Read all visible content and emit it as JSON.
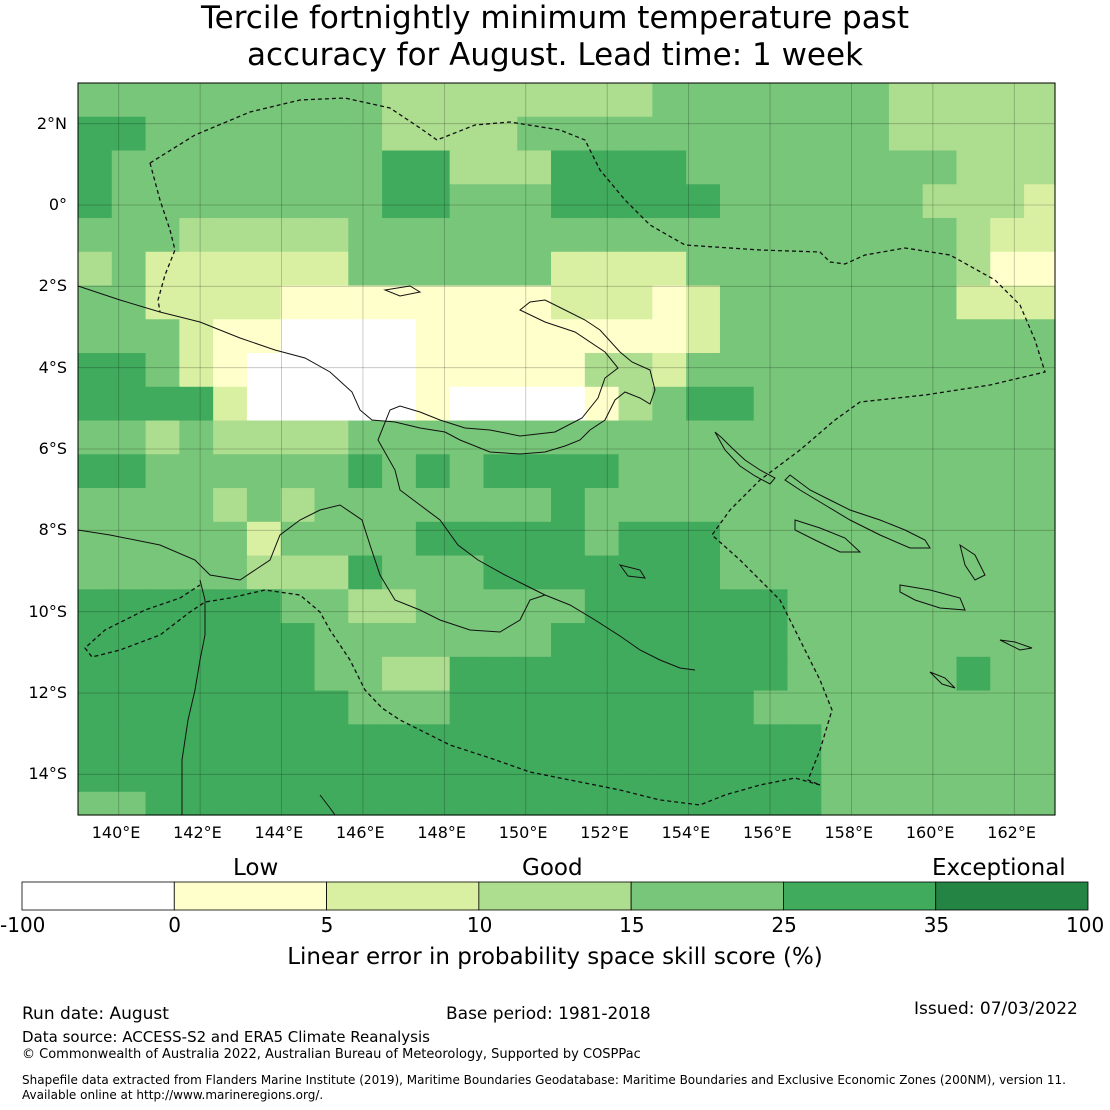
{
  "title_line1": "Tercile fortnightly minimum temperature past",
  "title_line2": "accuracy for August. Lead time: 1 week",
  "map": {
    "lat_range": [
      -15,
      3
    ],
    "lon_range": [
      139,
      163
    ],
    "lat_labels": [
      "2°N",
      "0°",
      "2°S",
      "4°S",
      "6°S",
      "8°S",
      "10°S",
      "12°S",
      "14°S"
    ],
    "lon_labels": [
      "140°E",
      "142°E",
      "144°E",
      "146°E",
      "148°E",
      "150°E",
      "152°E",
      "154°E",
      "156°E",
      "158°E",
      "160°E",
      "162°E"
    ],
    "grid_resolution_deg": 0.83,
    "grid_rows_north_to_south": [
      "44444444433333333444444433333322",
      "55444444433334444444444433333221",
      "54444444455333555544444444333211",
      "54444444455444555554444443332100",
      "44433333444444444444444444322111",
      "34222222444444222244444444311111",
      "44222211111111222124444444222221",
      "44421100001111111124444444444444",
      "55421000001111133244444444444444",
      "55552000001000013455444444444444",
      "44343333444444444444444444444444",
      "55444444545455554444444444444444",
      "44443434444444544444444444444444",
      "44444244445555545554444444444444",
      "44444333544455555554444444444444",
      "55555544334444455555544444444444",
      "55555554444444555555544444444444",
      "55555554433555555555544444544554",
      "55555555444555555555444444444544",
      "55555555555555555555554444444555",
      "55555555555555555555554444444455",
      "44555555555555555555554444444444",
      "55555555555555555555554444444444",
      "44545555555555555555555444444444",
      "44445555555555555555555444444444",
      "44335555554555555555555444444444",
      "44335545555555555555544444444444",
      "44444455444455555554444444444444"
    ]
  },
  "colorbar": {
    "categories": [
      "Low",
      "Good",
      "Exceptional"
    ],
    "tick_labels": [
      "-100",
      "0",
      "5",
      "10",
      "15",
      "25",
      "35",
      "100"
    ],
    "bins": [
      {
        "from": -100,
        "to": 0,
        "color": "#ffffff"
      },
      {
        "from": 0,
        "to": 5,
        "color": "#ffffcc"
      },
      {
        "from": 5,
        "to": 10,
        "color": "#d9f0a3"
      },
      {
        "from": 10,
        "to": 15,
        "color": "#addd8e"
      },
      {
        "from": 15,
        "to": 25,
        "color": "#78c679"
      },
      {
        "from": 25,
        "to": 35,
        "color": "#41ab5d"
      },
      {
        "from": 35,
        "to": 100,
        "color": "#238443"
      }
    ],
    "label": "Linear error in probability space skill score (%)"
  },
  "footer": {
    "run_date": "Run date: August",
    "base_period": "Base period: 1981-2018",
    "issued": "Issued: 07/03/2022",
    "data_source": "Data source: ACCESS-S2 and ERA5 Climate Reanalysis",
    "copyright": "© Commonwealth of Australia 2022, Australian Bureau of Meteorology, Supported by COSPPac",
    "shapefile_line1": "Shapefile data extracted from Flanders Marine Institute (2019), Maritime Boundaries Geodatabase: Maritime Boundaries and Exclusive Economic Zones (200NM), version 11.",
    "shapefile_line2": "Available online at http://www.marineregions.org/."
  }
}
